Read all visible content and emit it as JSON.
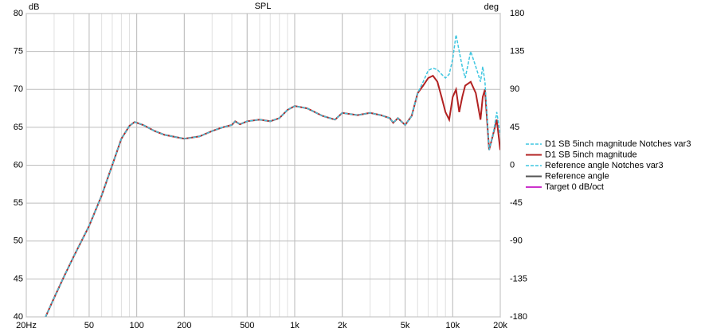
{
  "chart_data": {
    "type": "line",
    "title": "SPL",
    "ylabel": "dB",
    "y2label": "deg",
    "xscale": "log",
    "grid": true,
    "xlim": [
      20,
      20000
    ],
    "xticks": [
      {
        "value": 20,
        "label": "20Hz"
      },
      50,
      100,
      200,
      500,
      {
        "value": 1000,
        "label": "1k"
      },
      {
        "value": 2000,
        "label": "2k"
      },
      {
        "value": 5000,
        "label": "5k"
      },
      {
        "value": 10000,
        "label": "10k"
      },
      {
        "value": 20000,
        "label": "20k"
      }
    ],
    "ylim": [
      40,
      80
    ],
    "yticks": [
      40,
      45,
      50,
      55,
      60,
      65,
      70,
      75,
      80
    ],
    "y2lim": [
      -180,
      180
    ],
    "y2ticks": [
      -180,
      -135,
      -90,
      -45,
      0,
      45,
      90,
      135,
      180
    ],
    "x": [
      26.5,
      30,
      35,
      40,
      50,
      60,
      70,
      80,
      90,
      97,
      110,
      130,
      150,
      200,
      250,
      300,
      350,
      400,
      420,
      450,
      500,
      600,
      700,
      800,
      900,
      1000,
      1200,
      1500,
      1800,
      2000,
      2500,
      3000,
      3500,
      4000,
      4200,
      4500,
      5000,
      5500,
      6000,
      6500,
      7000,
      7500,
      8000,
      8500,
      9000,
      9500,
      10000,
      10500,
      11000,
      11500,
      12000,
      13000,
      14000,
      15000,
      15500,
      16000,
      17000,
      18000,
      19000,
      20000
    ],
    "legend": "right",
    "series": [
      {
        "name": "D1 SB 5inch magnitude Notches var3",
        "color": "#3ec6e0",
        "dash": true,
        "values": [
          40,
          42.5,
          45.5,
          48,
          52,
          56,
          60,
          63.5,
          65.2,
          65.7,
          65.3,
          64.5,
          64,
          63.5,
          63.8,
          64.5,
          65,
          65.3,
          65.8,
          65.4,
          65.8,
          66,
          65.8,
          66.2,
          67.3,
          67.8,
          67.5,
          66.5,
          66,
          66.9,
          66.6,
          66.9,
          66.6,
          66.2,
          65.6,
          66.2,
          65.3,
          66.5,
          69.5,
          71,
          72.5,
          72.8,
          72.6,
          72,
          71.5,
          72,
          74,
          77.2,
          75,
          73,
          71.5,
          75,
          73,
          71,
          73,
          71,
          62,
          64,
          67,
          64
        ]
      },
      {
        "name": "D1 SB 5inch magnitude",
        "color": "#b22222",
        "dash": false,
        "values": [
          40,
          42.5,
          45.5,
          48,
          52,
          56,
          60,
          63.5,
          65.2,
          65.7,
          65.3,
          64.5,
          64,
          63.5,
          63.8,
          64.5,
          65,
          65.3,
          65.8,
          65.4,
          65.8,
          66,
          65.8,
          66.2,
          67.3,
          67.8,
          67.5,
          66.5,
          66,
          66.9,
          66.6,
          66.9,
          66.6,
          66.2,
          65.6,
          66.2,
          65.3,
          66.5,
          69.5,
          70.5,
          71.5,
          71.8,
          71,
          69,
          67,
          66,
          69,
          70,
          67,
          69,
          70.5,
          71,
          69.5,
          66,
          69,
          70,
          62,
          64,
          66,
          62
        ]
      },
      {
        "name": "Reference angle Notches var3",
        "color": "#3ec6e0",
        "dash": true
      },
      {
        "name": "Reference angle",
        "color": "#555555",
        "dash": false
      },
      {
        "name": "Target 0 dB/oct",
        "color": "#cc33cc",
        "dash": false
      }
    ]
  }
}
